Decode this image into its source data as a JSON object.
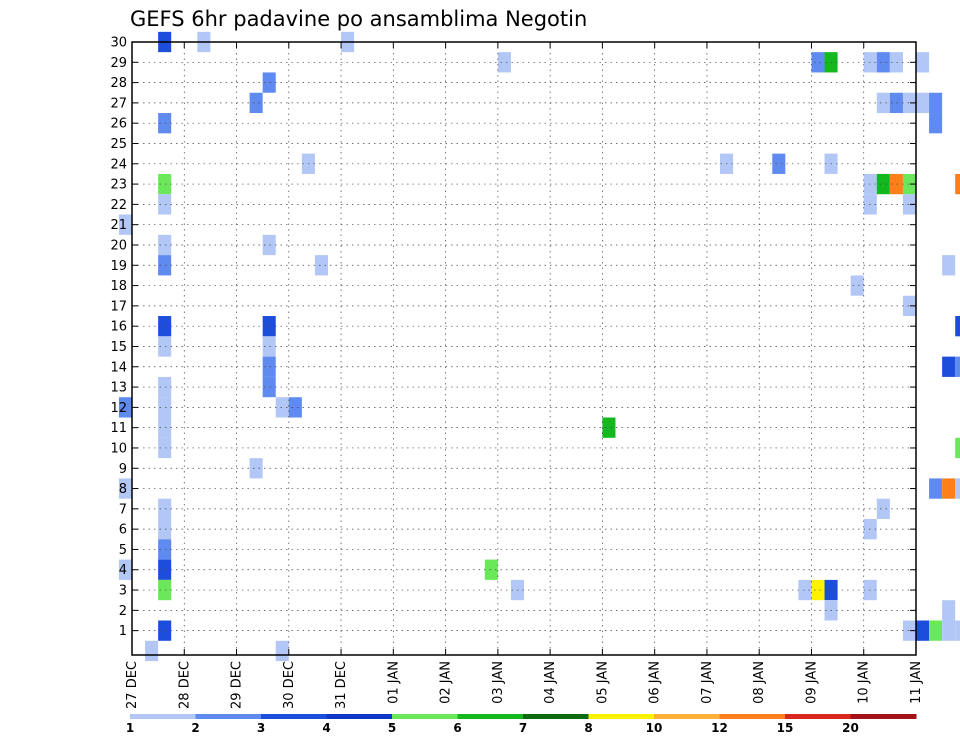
{
  "chart_data": {
    "type": "heatmap",
    "title": "GEFS 6hr padavine po ansamblima Negotin",
    "xlabel": "",
    "ylabel": "",
    "x_start": "2024-12-27",
    "x_step_hours": 6,
    "x_tick_labels": [
      "27 DEC",
      "28 DEC",
      "29 DEC",
      "30 DEC",
      "31 DEC",
      "01 JAN",
      "02 JAN",
      "03 JAN",
      "04 JAN",
      "05 JAN",
      "06 JAN",
      "07 JAN",
      "08 JAN",
      "09 JAN",
      "10 JAN",
      "11 JAN"
    ],
    "y_tick_labels": [
      "1",
      "2",
      "3",
      "4",
      "5",
      "6",
      "7",
      "8",
      "9",
      "10",
      "11",
      "12",
      "13",
      "14",
      "15",
      "16",
      "17",
      "18",
      "19",
      "20",
      "21",
      "22",
      "23",
      "24",
      "25",
      "26",
      "27",
      "28",
      "29",
      "30"
    ],
    "ylim": [
      0,
      30
    ],
    "grid": true,
    "colorbar": {
      "position": "bottom",
      "labels": [
        "1",
        "2",
        "3",
        "4",
        "5",
        "6",
        "7",
        "8",
        "10",
        "12",
        "15",
        "20"
      ],
      "colors": [
        "#b3c7f7",
        "#5f8af0",
        "#1d4ddb",
        "#0f36c8",
        "#6be85a",
        "#12b81e",
        "#0e6a10",
        "#fff200",
        "#ffb13a",
        "#ff7f1a",
        "#d8271c",
        "#a5131a",
        "#6b0a0e"
      ]
    },
    "cells": [
      [
        "12-27 12",
        30,
        3
      ],
      [
        "12-28 06",
        30,
        1
      ],
      [
        "12-31 00",
        30,
        1
      ],
      [
        "01-03 00",
        29,
        1
      ],
      [
        "01-09 00",
        29,
        2
      ],
      [
        "01-09 06",
        29,
        6
      ],
      [
        "01-10 00",
        29,
        1
      ],
      [
        "01-10 06",
        29,
        2
      ],
      [
        "01-10 12",
        29,
        1
      ],
      [
        "01-11 00",
        29,
        1
      ],
      [
        "12-29 12",
        28,
        2
      ],
      [
        "12-29 06",
        27,
        2
      ],
      [
        "01-10 06",
        27,
        1
      ],
      [
        "01-10 12",
        27,
        2
      ],
      [
        "01-10 18",
        27,
        1
      ],
      [
        "01-11 00",
        27,
        1
      ],
      [
        "01-11 06",
        27,
        2
      ],
      [
        "12-27 12",
        26,
        2
      ],
      [
        "01-11 06",
        26,
        2
      ],
      [
        "12-30 06",
        24,
        1
      ],
      [
        "01-07 06",
        24,
        1
      ],
      [
        "01-08 06",
        24,
        2
      ],
      [
        "01-09 06",
        24,
        1
      ],
      [
        "12-27 12",
        23,
        5
      ],
      [
        "01-10 00",
        23,
        1
      ],
      [
        "01-10 06",
        23,
        6
      ],
      [
        "01-10 12",
        23,
        10
      ],
      [
        "01-10 18",
        23,
        5
      ],
      [
        "01-11 18",
        23,
        10
      ],
      [
        "12-27 12",
        22,
        1
      ],
      [
        "01-10 00",
        22,
        1
      ],
      [
        "01-10 18",
        22,
        1
      ],
      [
        "01-12 00",
        22,
        1
      ],
      [
        "01-12 18",
        22,
        1
      ],
      [
        "12-26 18",
        21,
        1
      ],
      [
        "12-27 12",
        20,
        1
      ],
      [
        "12-29 12",
        20,
        1
      ],
      [
        "12-27 12",
        19,
        2
      ],
      [
        "12-30 12",
        19,
        1
      ],
      [
        "01-11 12",
        19,
        1
      ],
      [
        "01-09 18",
        18,
        1
      ],
      [
        "01-10 18",
        17,
        1
      ],
      [
        "12-27 12",
        16,
        3
      ],
      [
        "12-29 12",
        16,
        3
      ],
      [
        "01-11 18",
        16,
        3
      ],
      [
        "01-12 00",
        16,
        1
      ],
      [
        "12-27 12",
        15,
        1
      ],
      [
        "12-29 12",
        15,
        1
      ],
      [
        "12-29 12",
        14,
        2
      ],
      [
        "01-11 12",
        14,
        3
      ],
      [
        "01-11 18",
        14,
        2
      ],
      [
        "12-27 12",
        13,
        1
      ],
      [
        "12-29 12",
        13,
        2
      ],
      [
        "12-26 18",
        12,
        2
      ],
      [
        "12-27 12",
        12,
        1
      ],
      [
        "12-29 18",
        12,
        1
      ],
      [
        "12-30 00",
        12,
        2
      ],
      [
        "12-27 12",
        11,
        1
      ],
      [
        "01-05 00",
        11,
        6
      ],
      [
        "12-27 12",
        10,
        1
      ],
      [
        "01-11 18",
        10,
        5
      ],
      [
        "01-12 00",
        10,
        5
      ],
      [
        "01-12 06",
        10,
        8
      ],
      [
        "01-12 12",
        10,
        7
      ],
      [
        "01-12 18",
        10,
        5
      ],
      [
        "01-13 00",
        10,
        3
      ],
      [
        "12-29 06",
        9,
        1
      ],
      [
        "01-12 06",
        9,
        1
      ],
      [
        "12-26 18",
        8,
        1
      ],
      [
        "01-11 06",
        8,
        2
      ],
      [
        "01-11 12",
        8,
        10
      ],
      [
        "01-11 18",
        8,
        1
      ],
      [
        "12-27 12",
        7,
        1
      ],
      [
        "01-10 06",
        7,
        1
      ],
      [
        "12-27 12",
        6,
        1
      ],
      [
        "01-10 00",
        6,
        1
      ],
      [
        "12-27 12",
        5,
        2
      ],
      [
        "12-27 12",
        4,
        3
      ],
      [
        "12-26 18",
        4,
        1
      ],
      [
        "01-02 18",
        4,
        5
      ],
      [
        "01-12 12",
        4,
        1
      ],
      [
        "01-12 18",
        4,
        1
      ],
      [
        "12-27 12",
        3,
        5
      ],
      [
        "01-03 06",
        3,
        1
      ],
      [
        "01-08 18",
        3,
        1
      ],
      [
        "01-09 00",
        3,
        8
      ],
      [
        "01-09 06",
        3,
        3
      ],
      [
        "01-10 00",
        3,
        1
      ],
      [
        "01-09 06",
        2,
        1
      ],
      [
        "01-11 12",
        2,
        1
      ],
      [
        "12-27 12",
        1,
        3
      ],
      [
        "01-10 18",
        1,
        1
      ],
      [
        "01-11 00",
        1,
        3
      ],
      [
        "01-11 06",
        1,
        5
      ],
      [
        "01-11 12",
        1,
        1
      ],
      [
        "01-11 18",
        1,
        1
      ],
      [
        "01-12 18",
        1,
        1
      ],
      [
        "01-13 00",
        1,
        1
      ],
      [
        "12-27 06",
        0,
        1
      ],
      [
        "12-29 18",
        0,
        1
      ]
    ]
  }
}
